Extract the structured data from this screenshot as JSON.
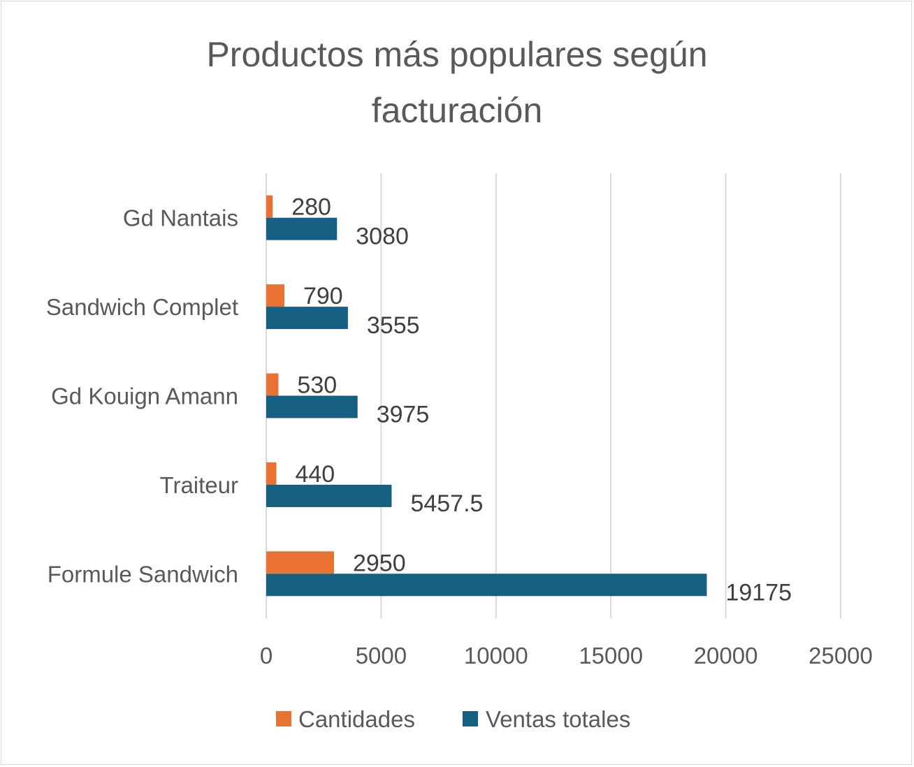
{
  "chart_data": {
    "type": "bar",
    "orientation": "horizontal",
    "title": "Productos más populares según facturación",
    "title_lines": [
      "Productos más populares según",
      "facturación"
    ],
    "categories": [
      "Gd Nantais",
      "Sandwich Complet",
      "Gd Kouign Amann",
      "Traiteur",
      "Formule Sandwich"
    ],
    "series": [
      {
        "name": "Cantidades",
        "color": "#e97132",
        "values": [
          280,
          790,
          530,
          440,
          2950
        ],
        "labels": [
          "280",
          "790",
          "530",
          "440",
          "2950"
        ]
      },
      {
        "name": "Ventas totales",
        "color": "#156082",
        "values": [
          3080,
          3555,
          3975,
          5457.5,
          19175
        ],
        "labels": [
          "3080",
          "3555",
          "3975",
          "5457.5",
          "19175"
        ]
      }
    ],
    "xlim": [
      0,
      25000
    ],
    "xticks": [
      0,
      5000,
      10000,
      15000,
      20000,
      25000
    ],
    "xtick_labels": [
      "0",
      "5000",
      "10000",
      "15000",
      "20000",
      "25000"
    ],
    "grid": true,
    "legend_position": "bottom",
    "gridline_color": "#d9d9d9"
  }
}
